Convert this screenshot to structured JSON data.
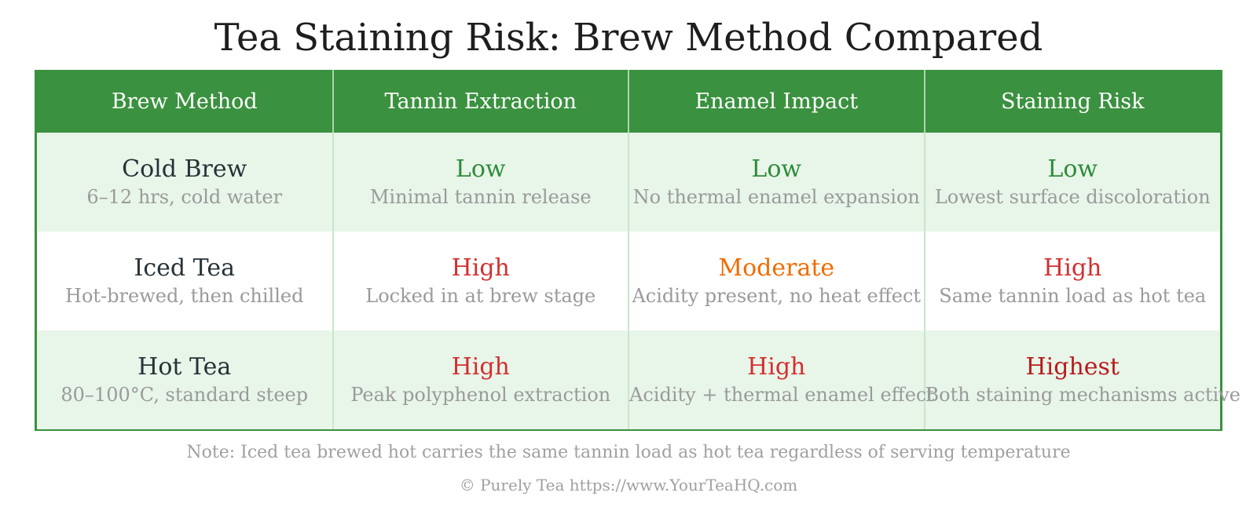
{
  "title": "Tea Staining Risk: Brew Method Compared",
  "colors": {
    "header_bg": "#3a913f",
    "row_shade": "#e8f5e9",
    "low": "#2e8b3a",
    "moderate": "#ef6c00",
    "high": "#d32f2f",
    "highest": "#b71c1c"
  },
  "table": {
    "headers": [
      "Brew Method",
      "Tannin Extraction",
      "Enamel Impact",
      "Staining Risk"
    ],
    "rows": [
      {
        "method": {
          "name": "Cold Brew",
          "detail": "6–12 hrs, cold water"
        },
        "tannin": {
          "level": "Low",
          "detail": "Minimal tannin release",
          "color": "#2e8b3a"
        },
        "enamel": {
          "level": "Low",
          "detail": "No thermal enamel expansion",
          "color": "#2e8b3a"
        },
        "risk": {
          "level": "Low",
          "detail": "Lowest surface discoloration",
          "color": "#2e8b3a"
        }
      },
      {
        "method": {
          "name": "Iced Tea",
          "detail": "Hot-brewed, then chilled"
        },
        "tannin": {
          "level": "High",
          "detail": "Locked in at brew stage",
          "color": "#d32f2f"
        },
        "enamel": {
          "level": "Moderate",
          "detail": "Acidity present, no heat effect",
          "color": "#ef6c00"
        },
        "risk": {
          "level": "High",
          "detail": "Same tannin load as hot tea",
          "color": "#d32f2f"
        }
      },
      {
        "method": {
          "name": "Hot Tea",
          "detail": "80–100°C, standard steep"
        },
        "tannin": {
          "level": "High",
          "detail": "Peak polyphenol extraction",
          "color": "#d32f2f"
        },
        "enamel": {
          "level": "High",
          "detail": "Acidity + thermal enamel effect",
          "color": "#d32f2f"
        },
        "risk": {
          "level": "Highest",
          "detail": "Both staining mechanisms active",
          "color": "#b71c1c"
        }
      }
    ]
  },
  "note": "Note: Iced tea brewed hot carries the same tannin load as hot tea regardless of serving temperature",
  "credit": "© Purely Tea https://www.YourTeaHQ.com"
}
